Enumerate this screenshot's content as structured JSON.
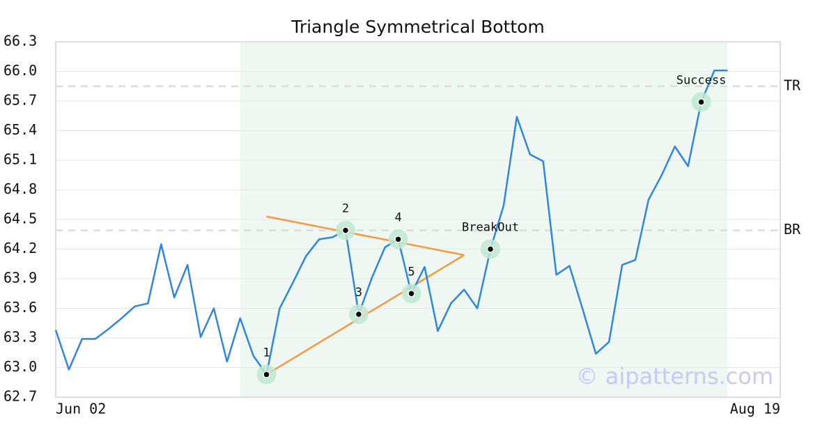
{
  "chart_data": {
    "type": "line",
    "title": "Triangle Symmetrical Bottom",
    "watermark": "© aipatterns.com",
    "color": "#2e86de",
    "categories": [
      "Jun 02",
      null,
      null,
      null,
      null,
      null,
      null,
      null,
      null,
      null,
      null,
      null,
      null,
      null,
      null,
      null,
      null,
      null,
      null,
      null,
      null,
      null,
      null,
      null,
      null,
      null,
      null,
      null,
      null,
      null,
      null,
      null,
      null,
      null,
      null,
      null,
      null,
      null,
      null,
      null,
      null,
      null,
      null,
      null,
      null,
      null,
      null,
      null,
      null,
      null,
      null,
      null,
      null,
      null,
      null,
      "Aug 19"
    ],
    "values": [
      63.38,
      62.98,
      63.29,
      63.29,
      63.39,
      63.5,
      63.62,
      63.65,
      64.25,
      63.71,
      64.04,
      63.31,
      63.6,
      63.06,
      63.5,
      63.12,
      62.93,
      63.6,
      63.86,
      64.13,
      64.3,
      64.32,
      64.39,
      63.54,
      63.91,
      64.22,
      64.3,
      63.75,
      64.02,
      63.37,
      63.65,
      63.79,
      63.6,
      64.2,
      64.64,
      65.54,
      65.16,
      65.09,
      63.94,
      64.03,
      63.59,
      63.14,
      63.26,
      64.04,
      64.09,
      64.7,
      64.95,
      65.24,
      65.04,
      65.69,
      66.01,
      66.01,
      null,
      null,
      null,
      null
    ],
    "ylim": [
      62.7,
      66.3
    ],
    "yticks": [
      {
        "value": 62.7,
        "label": "62.7"
      },
      {
        "value": 63,
        "label": "63.0"
      },
      63.3,
      63.6,
      63.9,
      64.2,
      64.5,
      64.8,
      65.1,
      65.4,
      65.7,
      {
        "value": 66,
        "label": "66.0"
      },
      66.3
    ],
    "grid": true,
    "pattern_range": [
      14,
      51
    ],
    "pattern_color": "#eef7f2",
    "trendline_color": "#f59a42",
    "trendlines": [
      {
        "x": [
          16,
          31
        ],
        "y": [
          64.53,
          64.14
        ]
      },
      {
        "x": [
          16,
          31
        ],
        "y": [
          62.93,
          64.14
        ]
      }
    ],
    "levels": [
      {
        "label": "TR",
        "value": 65.85
      },
      {
        "label": "BR",
        "value": 64.39
      }
    ],
    "points": [
      {
        "label": "1",
        "x": 16,
        "value": 62.93
      },
      {
        "label": "2",
        "x": 22,
        "value": 64.39
      },
      {
        "label": "3",
        "x": 23,
        "value": 63.54
      },
      {
        "label": "4",
        "x": 26,
        "value": 64.3
      },
      {
        "label": "5",
        "x": 27,
        "value": 63.75
      },
      {
        "label": "BreakOut",
        "x": 33,
        "value": 64.2
      },
      {
        "label": "Success",
        "x": 49,
        "value": 65.69
      }
    ]
  }
}
